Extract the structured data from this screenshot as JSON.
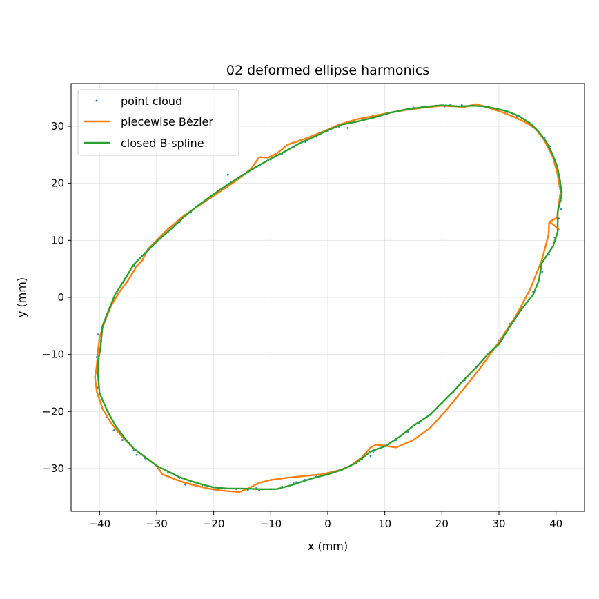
{
  "chart_data": {
    "type": "line",
    "title": "02 deformed ellipse harmonics",
    "xlabel": "x (mm)",
    "ylabel": "y (mm)",
    "xlim": [
      -45,
      45
    ],
    "ylim": [
      -37.5,
      37.5
    ],
    "xticks": [
      -40,
      -30,
      -20,
      -10,
      0,
      10,
      20,
      30,
      40
    ],
    "yticks": [
      -30,
      -20,
      -10,
      0,
      10,
      20,
      30
    ],
    "grid": true,
    "legend_position": "top-left",
    "series": [
      {
        "name": "point cloud",
        "kind": "scatter",
        "color": "#1f77b4",
        "points": [
          [
            40.8,
            17.0
          ],
          [
            40.6,
            19.5
          ],
          [
            40.2,
            22.0
          ],
          [
            39.6,
            24.2
          ],
          [
            38.9,
            26.5
          ],
          [
            38.0,
            28.0
          ],
          [
            36.5,
            29.6
          ],
          [
            35.0,
            30.8
          ],
          [
            33.2,
            31.8
          ],
          [
            31.5,
            32.5
          ],
          [
            29.5,
            33.0
          ],
          [
            27.5,
            33.4
          ],
          [
            25.5,
            33.6
          ],
          [
            23.5,
            33.7
          ],
          [
            21.5,
            33.8
          ],
          [
            19.0,
            33.6
          ],
          [
            16.5,
            33.4
          ],
          [
            14.0,
            33.0
          ],
          [
            11.5,
            32.5
          ],
          [
            9.0,
            31.9
          ],
          [
            6.5,
            31.3
          ],
          [
            4.0,
            30.6
          ],
          [
            2.0,
            29.9
          ],
          [
            0.0,
            29.1
          ],
          [
            -2.0,
            28.2
          ],
          [
            -4.0,
            27.3
          ],
          [
            -6.0,
            26.3
          ],
          [
            -8.0,
            25.2
          ],
          [
            -10.0,
            24.2
          ],
          [
            -12.0,
            23.1
          ],
          [
            -14.0,
            21.9
          ],
          [
            -16.0,
            20.6
          ],
          [
            -18.0,
            19.4
          ],
          [
            -20.0,
            18.0
          ],
          [
            -22.0,
            16.5
          ],
          [
            -24.0,
            14.9
          ],
          [
            -26.0,
            13.2
          ],
          [
            -28.0,
            11.5
          ],
          [
            -30.0,
            9.7
          ],
          [
            -32.0,
            7.8
          ],
          [
            -34.0,
            5.5
          ],
          [
            -35.5,
            3.3
          ],
          [
            -37.0,
            0.8
          ],
          [
            -38.2,
            -1.7
          ],
          [
            -39.2,
            -4.5
          ],
          [
            -40.0,
            -7.5
          ],
          [
            -40.5,
            -10.5
          ],
          [
            -40.7,
            -13.0
          ],
          [
            -40.4,
            -15.8
          ],
          [
            -39.8,
            -18.5
          ],
          [
            -38.8,
            -21.0
          ],
          [
            -37.5,
            -23.3
          ],
          [
            -36.0,
            -25.0
          ],
          [
            -34.0,
            -26.8
          ],
          [
            -32.0,
            -28.2
          ],
          [
            -30.0,
            -29.6
          ],
          [
            -28.0,
            -30.6
          ],
          [
            -26.0,
            -31.6
          ],
          [
            -24.0,
            -32.3
          ],
          [
            -22.0,
            -32.9
          ],
          [
            -20.0,
            -33.3
          ],
          [
            -18.0,
            -33.5
          ],
          [
            -16.0,
            -33.6
          ],
          [
            -14.0,
            -33.7
          ],
          [
            -12.0,
            -33.7
          ],
          [
            -10.0,
            -33.6
          ],
          [
            -8.0,
            -33.2
          ],
          [
            -6.0,
            -32.6
          ],
          [
            -4.0,
            -32.0
          ],
          [
            -2.0,
            -31.4
          ],
          [
            0.0,
            -30.9
          ],
          [
            2.0,
            -30.3
          ],
          [
            4.0,
            -29.5
          ],
          [
            6.0,
            -28.3
          ],
          [
            8.0,
            -27.0
          ],
          [
            10.0,
            -26.0
          ],
          [
            12.0,
            -25.0
          ],
          [
            14.0,
            -23.6
          ],
          [
            16.0,
            -22.0
          ],
          [
            18.0,
            -20.6
          ],
          [
            20.0,
            -18.6
          ],
          [
            22.0,
            -16.6
          ],
          [
            24.0,
            -14.5
          ],
          [
            26.0,
            -12.2
          ],
          [
            28.0,
            -9.9
          ],
          [
            30.0,
            -7.5
          ],
          [
            32.0,
            -4.6
          ],
          [
            34.0,
            -1.9
          ],
          [
            36.0,
            1.0
          ],
          [
            37.6,
            4.5
          ],
          [
            38.8,
            7.5
          ],
          [
            39.8,
            10.5
          ],
          [
            40.5,
            13.8
          ],
          [
            40.9,
            15.5
          ],
          [
            41.0,
            18.5
          ],
          [
            -40.3,
            -6.5
          ],
          [
            -35.2,
            3.8
          ],
          [
            -29.3,
            10.3
          ],
          [
            -17.5,
            21.5
          ],
          [
            -1.5,
            28.8
          ],
          [
            3.5,
            29.7
          ],
          [
            15.0,
            33.3
          ],
          [
            20.5,
            33.5
          ],
          [
            30.0,
            32.8
          ],
          [
            37.0,
            28.8
          ],
          [
            39.3,
            25.0
          ],
          [
            7.5,
            -27.8
          ],
          [
            24.5,
            -13.8
          ],
          [
            -33.5,
            -27.6
          ],
          [
            -25.0,
            -32.8
          ],
          [
            -12.5,
            -33.4
          ],
          [
            -5.5,
            -32.4
          ]
        ]
      },
      {
        "name": "piecewise Bézier",
        "kind": "line",
        "color": "#ff7f0e",
        "points": [
          [
            40.6,
            11.8
          ],
          [
            39.5,
            12.8
          ],
          [
            38.8,
            13.2
          ],
          [
            40.2,
            14.0
          ],
          [
            40.5,
            16.5
          ],
          [
            40.8,
            18.5
          ],
          [
            40.3,
            21.5
          ],
          [
            39.5,
            24.5
          ],
          [
            38.0,
            27.5
          ],
          [
            36.5,
            29.5
          ],
          [
            35.0,
            30.5
          ],
          [
            33.0,
            31.5
          ],
          [
            31.0,
            32.3
          ],
          [
            29.0,
            33.0
          ],
          [
            27.0,
            33.6
          ],
          [
            26.0,
            33.9
          ],
          [
            24.0,
            33.4
          ],
          [
            22.0,
            33.5
          ],
          [
            20.0,
            33.6
          ],
          [
            17.0,
            33.3
          ],
          [
            14.0,
            32.9
          ],
          [
            11.0,
            32.4
          ],
          [
            8.0,
            31.8
          ],
          [
            5.0,
            31.2
          ],
          [
            2.0,
            30.3
          ],
          [
            -1.0,
            29.0
          ],
          [
            -4.0,
            27.8
          ],
          [
            -7.0,
            26.8
          ],
          [
            -9.0,
            25.2
          ],
          [
            -10.5,
            24.5
          ],
          [
            -12.0,
            24.6
          ],
          [
            -13.5,
            22.5
          ],
          [
            -16.0,
            20.5
          ],
          [
            -19.0,
            18.5
          ],
          [
            -22.0,
            16.5
          ],
          [
            -25.0,
            14.5
          ],
          [
            -28.0,
            12.0
          ],
          [
            -30.0,
            10.0
          ],
          [
            -31.5,
            8.5
          ],
          [
            -32.5,
            6.5
          ],
          [
            -33.5,
            5.5
          ],
          [
            -35.0,
            3.0
          ],
          [
            -36.5,
            1.0
          ],
          [
            -38.0,
            -1.5
          ],
          [
            -39.2,
            -4.5
          ],
          [
            -40.0,
            -7.0
          ],
          [
            -40.3,
            -9.5
          ],
          [
            -40.5,
            -12.0
          ],
          [
            -40.8,
            -14.0
          ],
          [
            -40.5,
            -16.5
          ],
          [
            -39.5,
            -19.5
          ],
          [
            -38.0,
            -22.0
          ],
          [
            -36.0,
            -24.5
          ],
          [
            -34.0,
            -26.5
          ],
          [
            -32.0,
            -28.0
          ],
          [
            -30.0,
            -29.5
          ],
          [
            -29.0,
            -31.0
          ],
          [
            -27.0,
            -31.8
          ],
          [
            -25.0,
            -32.5
          ],
          [
            -23.0,
            -33.0
          ],
          [
            -21.0,
            -33.5
          ],
          [
            -19.0,
            -33.8
          ],
          [
            -17.0,
            -34.0
          ],
          [
            -15.5,
            -34.1
          ],
          [
            -14.0,
            -33.5
          ],
          [
            -12.0,
            -32.5
          ],
          [
            -10.0,
            -32.0
          ],
          [
            -7.0,
            -31.6
          ],
          [
            -4.0,
            -31.3
          ],
          [
            -1.0,
            -31.0
          ],
          [
            2.0,
            -30.3
          ],
          [
            4.0,
            -29.5
          ],
          [
            6.0,
            -28.0
          ],
          [
            7.5,
            -26.3
          ],
          [
            8.5,
            -25.8
          ],
          [
            10.0,
            -26.0
          ],
          [
            12.0,
            -26.3
          ],
          [
            15.0,
            -25.0
          ],
          [
            18.0,
            -22.8
          ],
          [
            21.0,
            -19.5
          ],
          [
            24.0,
            -15.8
          ],
          [
            27.0,
            -12.0
          ],
          [
            30.0,
            -7.8
          ],
          [
            33.0,
            -3.2
          ],
          [
            35.5,
            1.5
          ],
          [
            37.5,
            6.5
          ],
          [
            38.7,
            11.0
          ],
          [
            38.8,
            13.2
          ]
        ]
      },
      {
        "name": "closed B-spline",
        "kind": "line",
        "color": "#2ca02c",
        "points": [
          [
            41.0,
            18.0
          ],
          [
            40.7,
            20.5
          ],
          [
            40.2,
            23.0
          ],
          [
            39.3,
            25.3
          ],
          [
            38.3,
            27.3
          ],
          [
            37.0,
            29.0
          ],
          [
            35.5,
            30.5
          ],
          [
            33.5,
            31.8
          ],
          [
            31.5,
            32.6
          ],
          [
            29.5,
            33.1
          ],
          [
            27.5,
            33.5
          ],
          [
            25.5,
            33.6
          ],
          [
            23.0,
            33.5
          ],
          [
            20.0,
            33.7
          ],
          [
            17.0,
            33.4
          ],
          [
            14.0,
            33.0
          ],
          [
            11.0,
            32.4
          ],
          [
            8.0,
            31.5
          ],
          [
            5.0,
            30.8
          ],
          [
            2.5,
            30.3
          ],
          [
            0.0,
            29.3
          ],
          [
            -2.5,
            28.1
          ],
          [
            -5.0,
            27.0
          ],
          [
            -7.5,
            25.6
          ],
          [
            -10.0,
            24.3
          ],
          [
            -12.5,
            22.9
          ],
          [
            -15.0,
            21.4
          ],
          [
            -17.5,
            19.8
          ],
          [
            -20.0,
            18.1
          ],
          [
            -22.5,
            16.3
          ],
          [
            -25.0,
            14.3
          ],
          [
            -27.5,
            12.0
          ],
          [
            -30.0,
            9.8
          ],
          [
            -32.0,
            7.8
          ],
          [
            -34.0,
            5.8
          ],
          [
            -35.5,
            3.3
          ],
          [
            -37.3,
            0.5
          ],
          [
            -38.5,
            -2.5
          ],
          [
            -39.5,
            -5.0
          ],
          [
            -39.8,
            -8.5
          ],
          [
            -40.3,
            -11.5
          ],
          [
            -40.3,
            -13.5
          ],
          [
            -40.0,
            -16.8
          ],
          [
            -38.6,
            -20.0
          ],
          [
            -37.2,
            -22.5
          ],
          [
            -35.5,
            -24.8
          ],
          [
            -34.0,
            -26.5
          ],
          [
            -32.0,
            -28.0
          ],
          [
            -30.0,
            -29.5
          ],
          [
            -28.0,
            -30.5
          ],
          [
            -26.0,
            -31.5
          ],
          [
            -24.0,
            -32.2
          ],
          [
            -22.0,
            -32.8
          ],
          [
            -20.0,
            -33.3
          ],
          [
            -17.5,
            -33.5
          ],
          [
            -15.0,
            -33.5
          ],
          [
            -12.0,
            -33.6
          ],
          [
            -9.0,
            -33.6
          ],
          [
            -6.0,
            -32.8
          ],
          [
            -3.0,
            -31.8
          ],
          [
            0.0,
            -31.0
          ],
          [
            2.5,
            -30.2
          ],
          [
            5.0,
            -29.0
          ],
          [
            7.5,
            -27.0
          ],
          [
            10.0,
            -26.1
          ],
          [
            12.5,
            -24.5
          ],
          [
            15.0,
            -22.5
          ],
          [
            18.0,
            -20.5
          ],
          [
            20.0,
            -18.5
          ],
          [
            22.0,
            -16.5
          ],
          [
            24.0,
            -14.3
          ],
          [
            26.0,
            -12.3
          ],
          [
            28.0,
            -10.0
          ],
          [
            30.0,
            -8.2
          ],
          [
            32.0,
            -5.0
          ],
          [
            34.0,
            -2.0
          ],
          [
            36.0,
            0.5
          ],
          [
            37.0,
            3.0
          ],
          [
            37.5,
            6.0
          ],
          [
            39.5,
            9.0
          ],
          [
            40.3,
            11.5
          ],
          [
            40.3,
            15.0
          ],
          [
            41.0,
            18.0
          ]
        ]
      }
    ]
  }
}
